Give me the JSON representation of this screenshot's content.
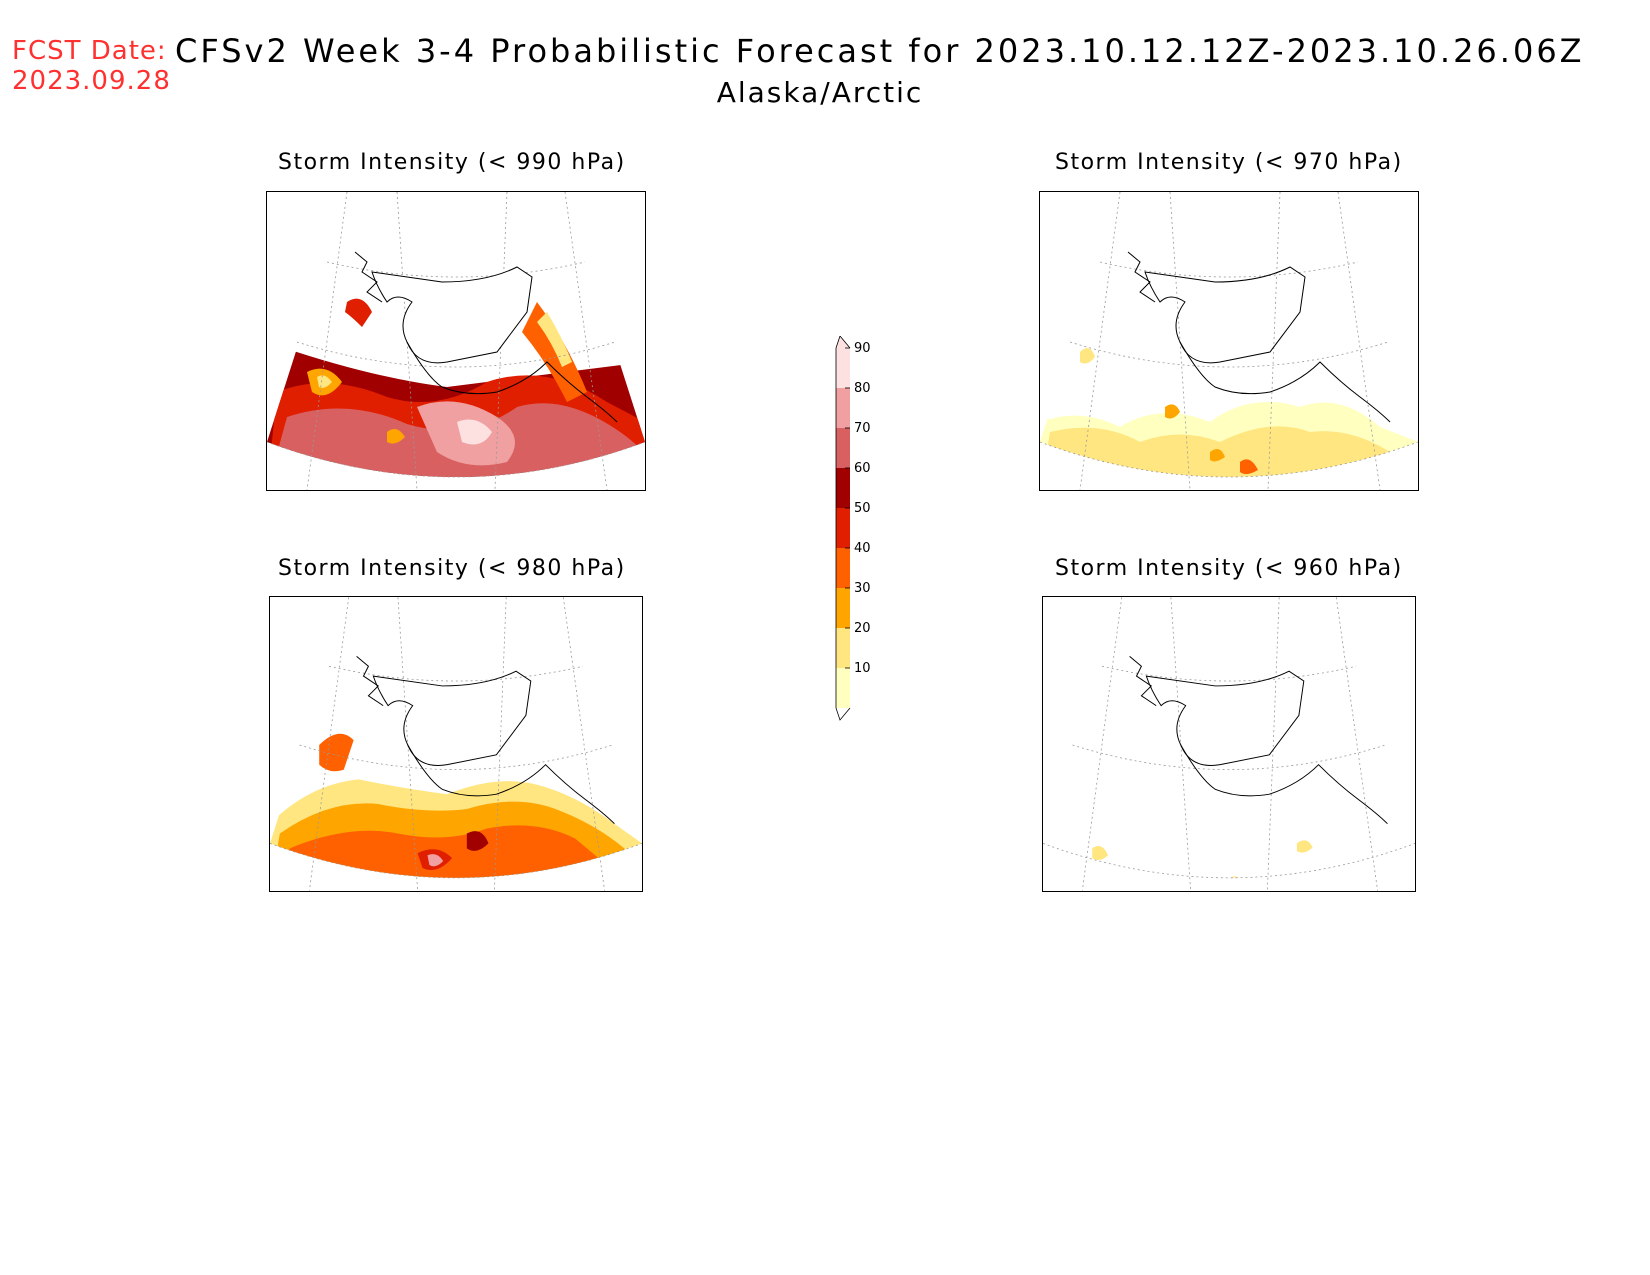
{
  "header": {
    "fcst_label": "FCST Date:",
    "fcst_date": "2023.09.28",
    "title": "CFSv2 Week 3-4 Probabilistic Forecast for 2023.10.12.12Z-2023.10.26.06Z",
    "region": "Alaska/Arctic",
    "label_color": "#ff3030"
  },
  "panels": [
    {
      "title": "Storm Intensity (< 990 hPa)",
      "id": "990",
      "intensity": 0.95
    },
    {
      "title": "Storm Intensity (< 970 hPa)",
      "id": "970",
      "intensity": 0.35
    },
    {
      "title": "Storm Intensity (< 980 hPa)",
      "id": "980",
      "intensity": 0.6
    },
    {
      "title": "Storm Intensity (< 960 hPa)",
      "id": "960",
      "intensity": 0.08
    }
  ],
  "colorbar": {
    "levels": [
      "10",
      "20",
      "30",
      "40",
      "50",
      "60",
      "70",
      "80",
      "90"
    ],
    "colors": [
      "#ffffc0",
      "#ffe680",
      "#ffa500",
      "#ff6000",
      "#e01e00",
      "#a00000",
      "#d86060",
      "#f0a0a0",
      "#fde0e0"
    ]
  }
}
